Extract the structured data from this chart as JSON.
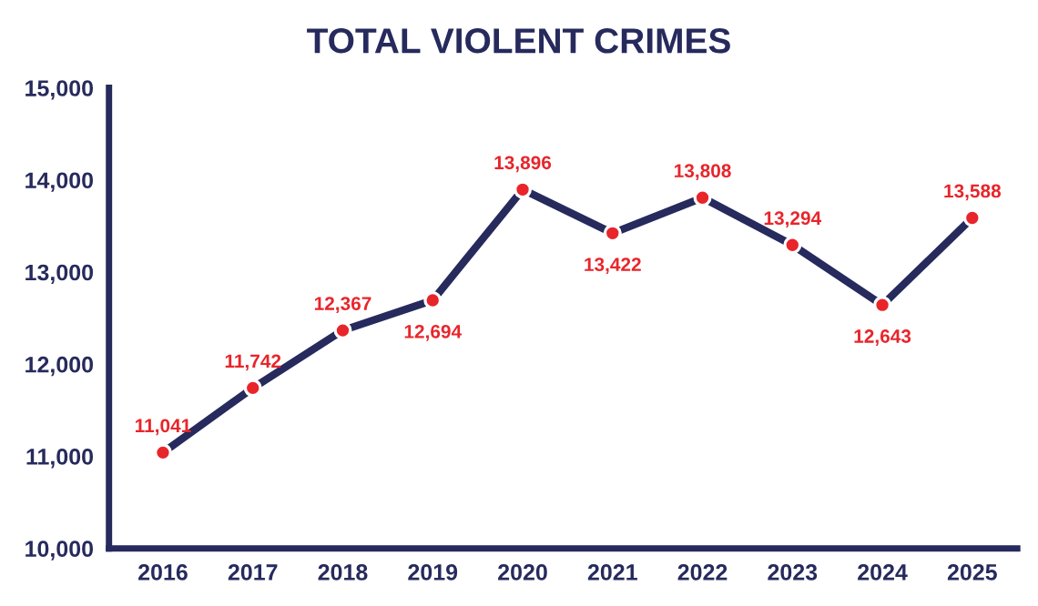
{
  "chart_data": {
    "type": "line",
    "title": "TOTAL VIOLENT CRIMES",
    "categories": [
      "2016",
      "2017",
      "2018",
      "2019",
      "2020",
      "2021",
      "2022",
      "2023",
      "2024",
      "2025"
    ],
    "series": [
      {
        "color": "#262a5c",
        "values": [
          11041,
          11742,
          12367,
          12694,
          13896,
          13422,
          13808,
          13294,
          12643,
          13588
        ]
      }
    ],
    "value_labels": [
      "11,041",
      "11,742",
      "12,367",
      "12,694",
      "13,896",
      "13,422",
      "13,808",
      "13,294",
      "12,643",
      "13,588"
    ],
    "ylim": [
      10000,
      15000
    ],
    "yticks": [
      {
        "value": 10000,
        "label": "10,000"
      },
      {
        "value": 11000,
        "label": "11,000"
      },
      {
        "value": 12000,
        "label": "12,000"
      },
      {
        "value": 13000,
        "label": "13,000"
      },
      {
        "value": 14000,
        "label": "14,000"
      },
      {
        "value": 15000,
        "label": "15,000"
      }
    ],
    "grid": false,
    "legend": false,
    "marker": "circle",
    "line_style": "solid"
  }
}
